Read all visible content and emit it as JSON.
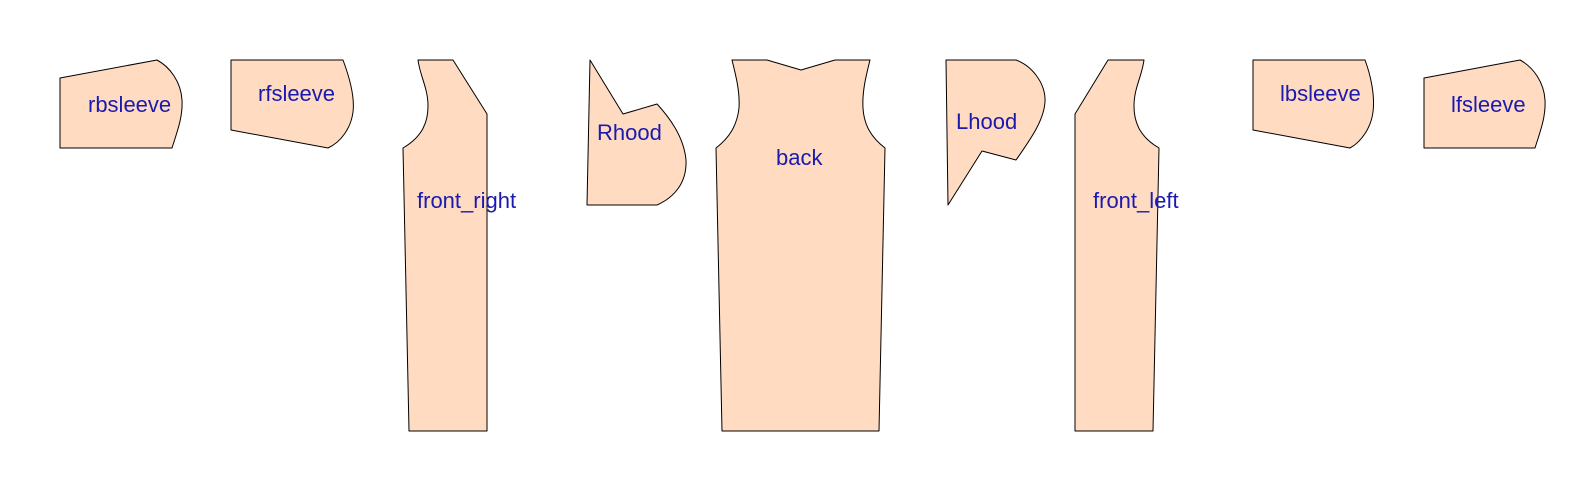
{
  "theme": {
    "piece_fill": "#FFDBC2",
    "label_color": "#1A1AAE"
  },
  "pieces": [
    {
      "id": "rbsleeve",
      "label": "rbsleeve"
    },
    {
      "id": "rfsleeve",
      "label": "rfsleeve"
    },
    {
      "id": "front-right",
      "label": "front_right"
    },
    {
      "id": "rhood",
      "label": "Rhood"
    },
    {
      "id": "back",
      "label": "back"
    },
    {
      "id": "lhood",
      "label": "Lhood"
    },
    {
      "id": "front-left",
      "label": "front_left"
    },
    {
      "id": "lbsleeve",
      "label": "lbsleeve"
    },
    {
      "id": "lfsleeve",
      "label": "lfsleeve"
    }
  ]
}
